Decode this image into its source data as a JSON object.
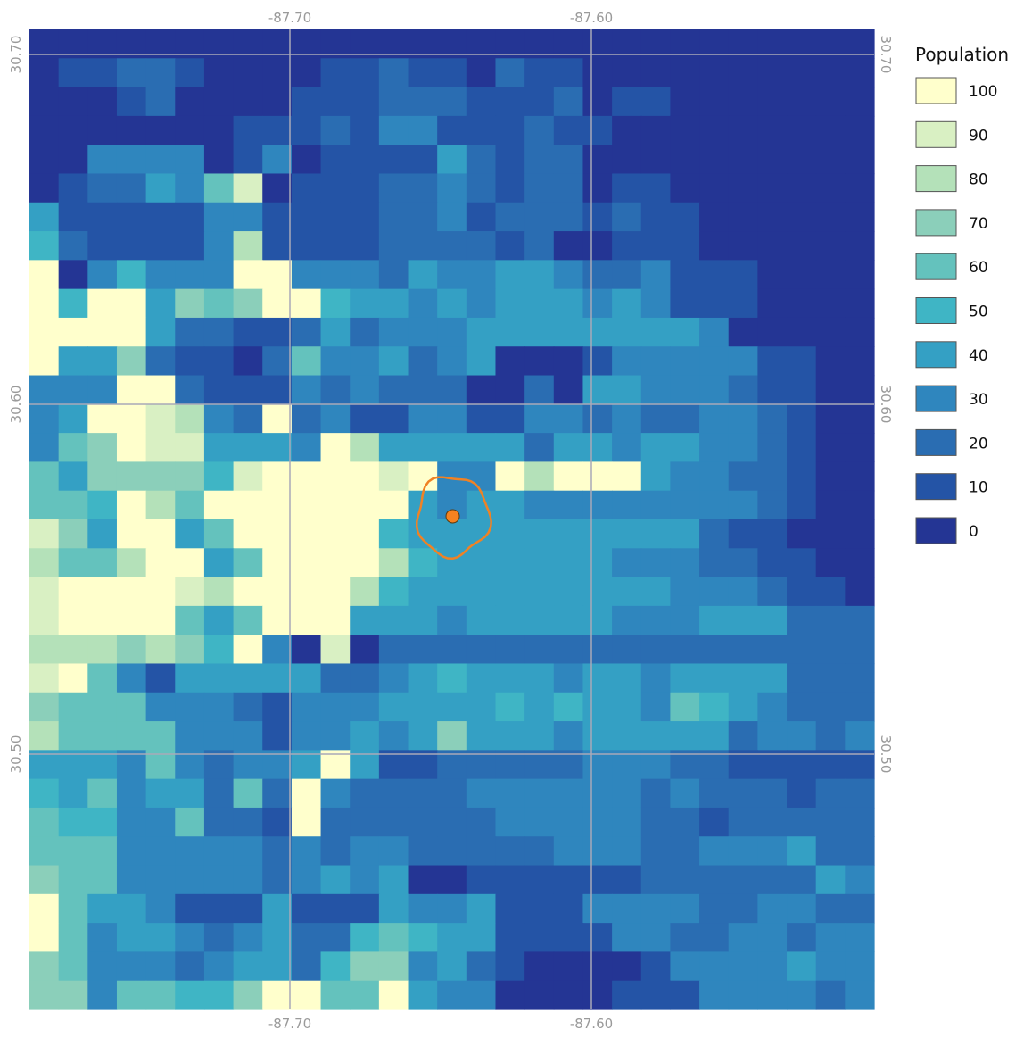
{
  "map": {
    "axes": {
      "longitude_ticks": [
        "-87.70",
        "-87.60"
      ],
      "latitude_ticks": [
        "30.70",
        "30.60",
        "30.50"
      ]
    },
    "grid_lines": true,
    "colormap": [
      "#ffffcc",
      "#d9f0c3",
      "#b4e1b9",
      "#8bcfba",
      "#64c2bd",
      "#3fb5c5",
      "#34a0c4",
      "#2f86be",
      "#2a6db2",
      "#2454a6",
      "#243594"
    ],
    "grid_rows": [
      "0000000000000000000000000000",
      "0112210000112110211000000000",
      "0001200001112221112011000000",
      "0000000111213311121100000000",
      "0033330130111142122000000000",
      "0122436901112232122011000000",
      "4111113311112231222121100000",
      "5211113811112222120011100000",
      "A035333AA3332433443223111000",
      "A5AA4767AA5443434443431110000",
      "AAAA422112423334444444430000",
      "A44721102633423400013333311000",
      "333AA2111323222002044333211000",
      "34AA9832A231133113323223321000",
      "367A9B4443A8444442443443321000",
      "64777759DAAA9A33A8AAA433221000",
      "665A86AAAAAAA43443333333321000",
      "974AA46AAAAA544444444442110000",
      "8668AA46AAAA854444443332211000",
      "9AAAA98AAAA8544444444433321100",
      "9AAAA646AAA4443444443334442221",
      "8887875A3090222222222222222221",
      "9A63144444223454443443444422221",
      "7666333213334444545443654322223",
      "8666633313343474443444442332332",
      "4443632334A4112222233322111111",
      "546344262A322223333332322212212",
      "655336221A2222223333322122222",
      "6663333323233222223332233342222",
      "7663333323434001111112222224331",
      "A64431114111433411133332233223332",
      "A6344323422565441111332233233221",
      "7633323442577342100001333343321",
      "77366557AA66A433000011133332321",
      "3348876AA4AA66A2000113332332221"
    ],
    "ring": {
      "center": {
        "lon": -87.646,
        "lat": 30.568
      },
      "radius_deg": 0.012,
      "color": "#f08224"
    },
    "point": {
      "lon": -87.646,
      "lat": 30.568,
      "color": "#f58220"
    }
  },
  "legend": {
    "title": "Population",
    "entries": [
      {
        "label": "100",
        "color": "#ffffcc"
      },
      {
        "label": "90",
        "color": "#d9f0c3"
      },
      {
        "label": "80",
        "color": "#b4e1b9"
      },
      {
        "label": "70",
        "color": "#8bcfba"
      },
      {
        "label": "60",
        "color": "#64c2bd"
      },
      {
        "label": "50",
        "color": "#3fb5c5"
      },
      {
        "label": "40",
        "color": "#34a0c4"
      },
      {
        "label": "30",
        "color": "#2f86be"
      },
      {
        "label": "20",
        "color": "#2a6db2"
      },
      {
        "label": "10",
        "color": "#2454a6"
      },
      {
        "label": "0",
        "color": "#243594"
      }
    ]
  }
}
